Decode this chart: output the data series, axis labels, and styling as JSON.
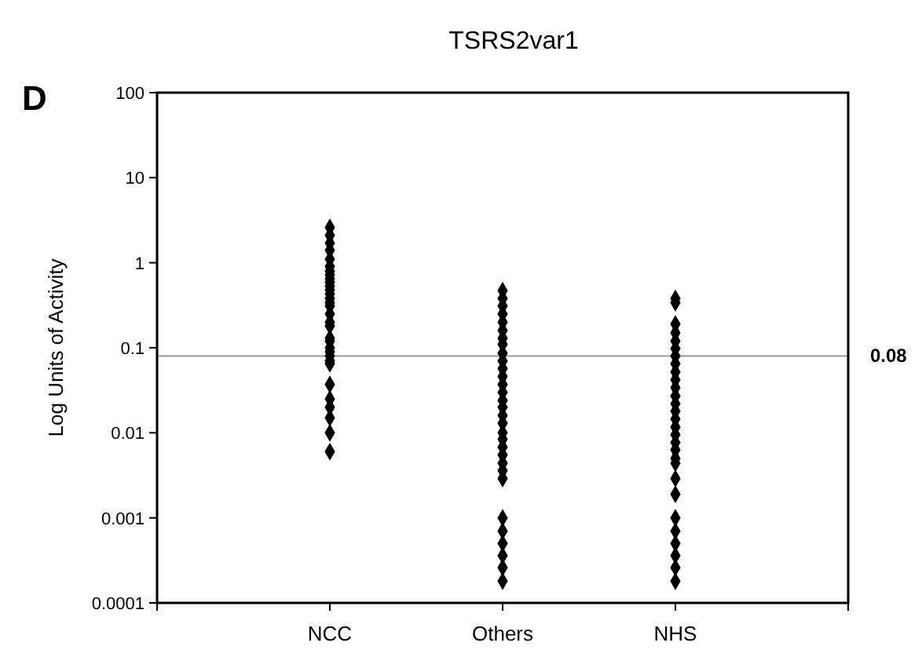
{
  "chart_data": {
    "type": "scatter",
    "title": "TSRS2var1",
    "ylabel": "Log Units of Activity",
    "annotations": [
      "D"
    ],
    "categories": [
      "NCC",
      "Others",
      "NHS"
    ],
    "log": "y",
    "ylim": [
      0.0001,
      100
    ],
    "yticks": [
      0.0001,
      0.001,
      0.01,
      0.1,
      1,
      10,
      100
    ],
    "grid": false,
    "marker": "diamond",
    "ref_lines": [
      {
        "axis": "y",
        "value": 0.08,
        "label": "0.08",
        "color": "#999999"
      }
    ],
    "series": [
      {
        "color": "#000000",
        "x": [
          "NCC",
          "NCC",
          "NCC",
          "NCC",
          "NCC",
          "NCC",
          "NCC",
          "NCC",
          "NCC",
          "NCC",
          "NCC",
          "NCC",
          "NCC",
          "NCC",
          "NCC",
          "NCC",
          "NCC",
          "NCC",
          "NCC",
          "NCC",
          "NCC",
          "NCC",
          "NCC",
          "NCC",
          "NCC",
          "NCC",
          "NCC",
          "NCC",
          "NCC",
          "NCC",
          "NCC",
          "NCC",
          "Others",
          "Others",
          "Others",
          "Others",
          "Others",
          "Others",
          "Others",
          "Others",
          "Others",
          "Others",
          "Others",
          "Others",
          "Others",
          "Others",
          "Others",
          "Others",
          "Others",
          "Others",
          "Others",
          "Others",
          "Others",
          "Others",
          "Others",
          "Others",
          "Others",
          "Others",
          "Others",
          "Others",
          "Others",
          "Others",
          "Others",
          "NHS",
          "NHS",
          "NHS",
          "NHS",
          "NHS",
          "NHS",
          "NHS",
          "NHS",
          "NHS",
          "NHS",
          "NHS",
          "NHS",
          "NHS",
          "NHS",
          "NHS",
          "NHS",
          "NHS",
          "NHS",
          "NHS",
          "NHS",
          "NHS",
          "NHS",
          "NHS",
          "NHS",
          "NHS",
          "NHS",
          "NHS",
          "NHS",
          "NHS"
        ],
        "values": [
          2.6,
          2.1,
          1.7,
          1.4,
          1.1,
          0.9,
          0.8,
          0.72,
          0.65,
          0.59,
          0.53,
          0.48,
          0.43,
          0.38,
          0.34,
          0.31,
          0.25,
          0.2,
          0.18,
          0.13,
          0.12,
          0.1,
          0.09,
          0.08,
          0.07,
          0.065,
          0.037,
          0.025,
          0.02,
          0.015,
          0.01,
          0.006,
          0.47,
          0.38,
          0.31,
          0.25,
          0.2,
          0.16,
          0.13,
          0.11,
          0.086,
          0.07,
          0.057,
          0.046,
          0.037,
          0.03,
          0.024,
          0.02,
          0.016,
          0.013,
          0.01,
          0.0084,
          0.0068,
          0.0055,
          0.0044,
          0.0036,
          0.0029,
          0.001,
          0.0007,
          0.0005,
          0.00036,
          0.00026,
          0.00018,
          0.38,
          0.34,
          0.19,
          0.15,
          0.12,
          0.098,
          0.08,
          0.065,
          0.052,
          0.042,
          0.034,
          0.027,
          0.022,
          0.018,
          0.0145,
          0.0117,
          0.0095,
          0.0077,
          0.0063,
          0.005,
          0.0044,
          0.0029,
          0.0019,
          0.001,
          0.0007,
          0.0005,
          0.00036,
          0.00026,
          0.00018
        ]
      }
    ]
  }
}
